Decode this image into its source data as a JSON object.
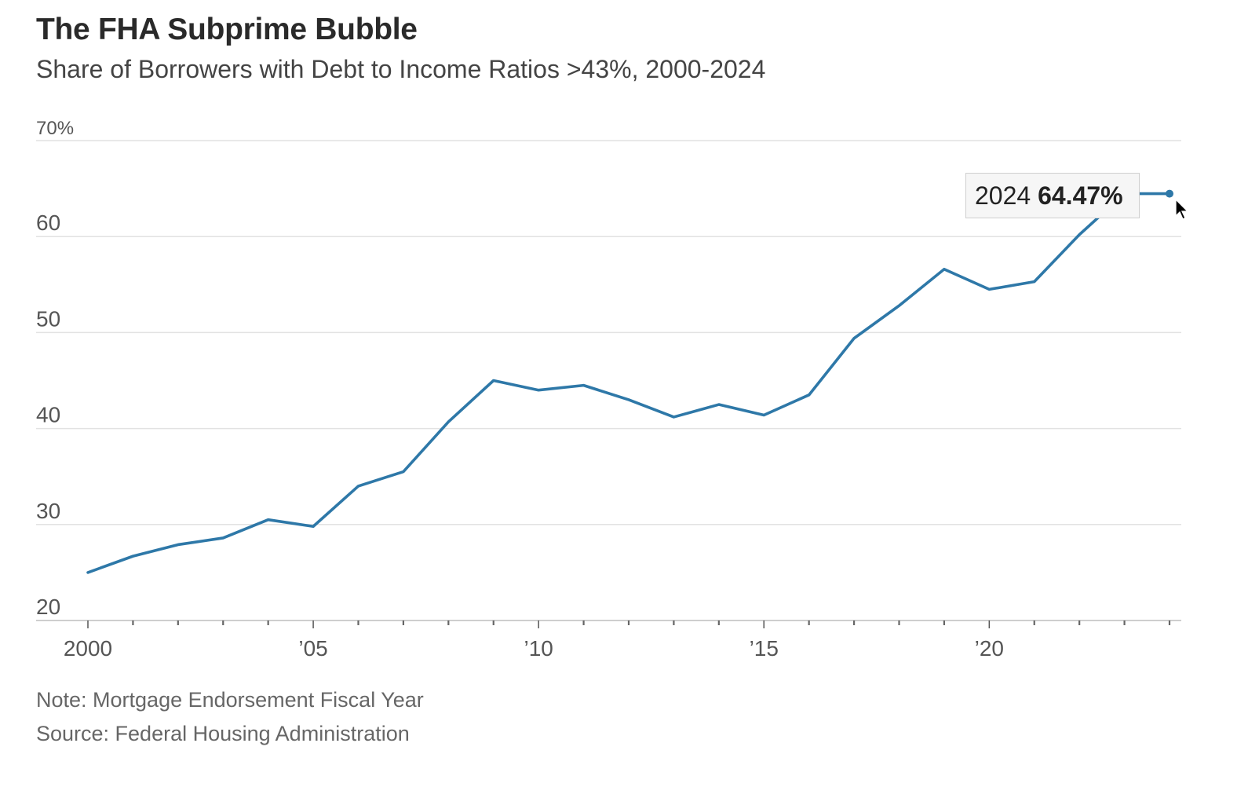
{
  "header": {
    "title": "The FHA Subprime Bubble",
    "subtitle": "Share of Borrowers with Debt to Income Ratios >43%, 2000-2024"
  },
  "footer": {
    "note": "Note: Mortgage Endorsement Fiscal Year",
    "source": "Source: Federal Housing Administration"
  },
  "tooltip": {
    "year": "2024",
    "value": "64.47%"
  },
  "chart_data": {
    "type": "line",
    "title": "The FHA Subprime Bubble",
    "subtitle": "Share of Borrowers with Debt to Income Ratios >43%, 2000-2024",
    "xlabel": "",
    "ylabel": "",
    "xlim": [
      2000,
      2024
    ],
    "ylim": [
      20,
      70
    ],
    "grid": true,
    "line_color": "#2e78a8",
    "y_ticks": [
      {
        "value": 70,
        "label": "70%"
      },
      {
        "value": 60,
        "label": "60"
      },
      {
        "value": 50,
        "label": "50"
      },
      {
        "value": 40,
        "label": "40"
      },
      {
        "value": 30,
        "label": "30"
      },
      {
        "value": 20,
        "label": "20"
      }
    ],
    "x_ticks": [
      {
        "value": 2000,
        "label": "2000"
      },
      {
        "value": 2005,
        "label": "’05"
      },
      {
        "value": 2010,
        "label": "’10"
      },
      {
        "value": 2015,
        "label": "’15"
      },
      {
        "value": 2020,
        "label": "’20"
      }
    ],
    "x": [
      2000,
      2001,
      2002,
      2003,
      2004,
      2005,
      2006,
      2007,
      2008,
      2009,
      2010,
      2011,
      2012,
      2013,
      2014,
      2015,
      2016,
      2017,
      2018,
      2019,
      2020,
      2021,
      2022,
      2023,
      2024
    ],
    "values": [
      25.0,
      26.7,
      27.9,
      28.6,
      30.5,
      29.8,
      34.0,
      35.5,
      40.7,
      45.0,
      44.0,
      44.5,
      43.0,
      41.2,
      42.5,
      41.4,
      43.5,
      49.4,
      52.8,
      56.6,
      54.5,
      55.3,
      60.2,
      64.47,
      64.47
    ],
    "highlight": {
      "x": 2024,
      "y": 64.47
    }
  }
}
